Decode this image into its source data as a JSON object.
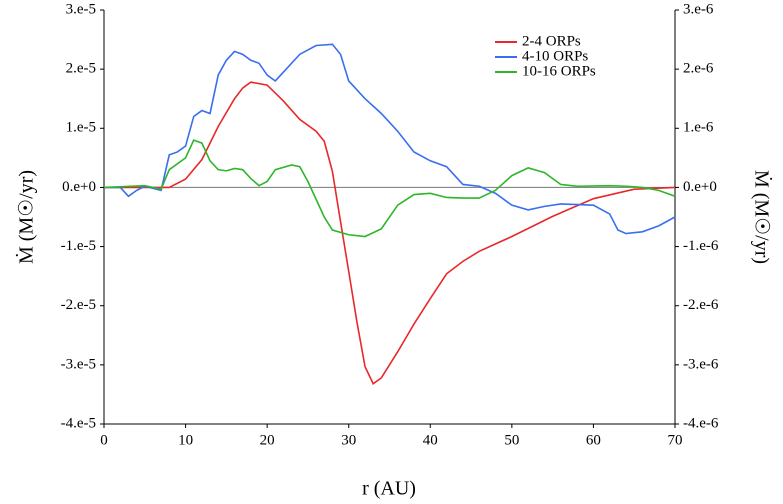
{
  "chart_data": {
    "type": "line",
    "xlabel": "r (AU)",
    "ylabel": "Ṁ (M☉/yr)",
    "y2label": "Ṁ (M☉/yr)",
    "xlim": [
      0,
      70
    ],
    "xticks": [
      0,
      10,
      20,
      30,
      40,
      50,
      60,
      70
    ],
    "ylim": [
      -4e-05,
      3e-05
    ],
    "yticks": [
      {
        "value": -4e-05,
        "label": "-4.e-5"
      },
      {
        "value": -3e-05,
        "label": "-3.e-5"
      },
      {
        "value": -2e-05,
        "label": "-2.e-5"
      },
      {
        "value": -1e-05,
        "label": "-1.e-5"
      },
      {
        "value": 0,
        "label": "0.e+0"
      },
      {
        "value": 1e-05,
        "label": "1.e-5"
      },
      {
        "value": 2e-05,
        "label": "2.e-5"
      },
      {
        "value": 3e-05,
        "label": "3.e-5"
      }
    ],
    "y2lim": [
      -4e-06,
      3e-06
    ],
    "y2ticks": [
      {
        "value": -4e-06,
        "label": "-4.e-6"
      },
      {
        "value": -3e-06,
        "label": "-3.e-6"
      },
      {
        "value": -2e-06,
        "label": "-2.e-6"
      },
      {
        "value": -1e-06,
        "label": "-1.e-6"
      },
      {
        "value": 0,
        "label": "0.e+0"
      },
      {
        "value": 1e-06,
        "label": "1.e-6"
      },
      {
        "value": 2e-06,
        "label": "2.e-6"
      },
      {
        "value": 3e-06,
        "label": "3.e-6"
      }
    ],
    "legend": "upper right",
    "series": [
      {
        "name": "2-4 ORPs",
        "color": "#e8282a",
        "x": [
          0,
          5,
          8,
          10,
          12,
          14,
          16,
          17,
          18,
          20,
          22,
          24,
          26,
          27,
          28,
          29,
          30,
          31,
          32,
          33,
          34,
          36,
          38,
          40,
          42,
          44,
          46,
          50,
          55,
          60,
          65,
          70
        ],
        "values": [
          0,
          0,
          0,
          1.4e-06,
          4.7e-06,
          1.03e-05,
          1.5e-05,
          1.68e-05,
          1.78e-05,
          1.73e-05,
          1.46e-05,
          1.15e-05,
          9.5e-06,
          7.8e-06,
          2.7e-06,
          -5.8e-06,
          -1.42e-05,
          -2.27e-05,
          -3.03e-05,
          -3.32e-05,
          -3.22e-05,
          -2.78e-05,
          -2.31e-05,
          -1.88e-05,
          -1.46e-05,
          -1.25e-05,
          -1.08e-05,
          -8.3e-06,
          -4.9e-06,
          -1.9e-06,
          -3e-07,
          0
        ]
      },
      {
        "name": "4-10 ORPs",
        "color": "#3a6ef0",
        "x": [
          0,
          2,
          3,
          4,
          5,
          7,
          8,
          9,
          10,
          11,
          12,
          13,
          14,
          15,
          16,
          17,
          18,
          19,
          20,
          21,
          22,
          24,
          26,
          28,
          29,
          30,
          32,
          34,
          36,
          38,
          40,
          42,
          44,
          46,
          48,
          50,
          52,
          54,
          56,
          60,
          62,
          63,
          64,
          66,
          68,
          70
        ],
        "values": [
          0,
          0,
          -1.5e-06,
          -5e-07,
          2e-07,
          -5e-07,
          5.5e-06,
          6e-06,
          7e-06,
          1.2e-05,
          1.3e-05,
          1.25e-05,
          1.9e-05,
          2.15e-05,
          2.3e-05,
          2.25e-05,
          2.15e-05,
          2.1e-05,
          1.9e-05,
          1.8e-05,
          1.95e-05,
          2.25e-05,
          2.4e-05,
          2.42e-05,
          2.25e-05,
          1.8e-05,
          1.5e-05,
          1.25e-05,
          9.5e-06,
          6e-06,
          4.5e-06,
          3.5e-06,
          5e-07,
          2e-07,
          -1e-06,
          -3e-06,
          -3.8e-06,
          -3.2e-06,
          -2.8e-06,
          -3e-06,
          -4.5e-06,
          -7.2e-06,
          -7.8e-06,
          -7.5e-06,
          -6.5e-06,
          -5e-06
        ]
      },
      {
        "name": "10-16 ORPs",
        "color": "#2fb52a",
        "x": [
          0,
          5,
          7,
          8,
          10,
          11,
          12,
          13,
          14,
          15,
          16,
          17,
          18,
          19,
          20,
          21,
          23,
          24,
          25,
          26,
          27,
          28,
          30,
          32,
          34,
          36,
          38,
          40,
          42,
          44,
          46,
          48,
          50,
          52,
          54,
          56,
          58,
          62,
          64,
          66,
          68,
          70
        ],
        "values": [
          0,
          3e-07,
          -3e-07,
          3e-06,
          5e-06,
          8e-06,
          7.5e-06,
          4.5e-06,
          3e-06,
          2.8e-06,
          3.2e-06,
          3e-06,
          1.5e-06,
          3e-07,
          1e-06,
          3e-06,
          3.8e-06,
          3.5e-06,
          1e-06,
          -2e-06,
          -5e-06,
          -7.2e-06,
          -8e-06,
          -8.3e-06,
          -7e-06,
          -3e-06,
          -1.2e-06,
          -1e-06,
          -1.7e-06,
          -1.8e-06,
          -1.8e-06,
          -5e-07,
          2e-06,
          3.3e-06,
          2.5e-06,
          5e-07,
          2e-07,
          3e-07,
          2e-07,
          0,
          -5e-07,
          -1.5e-06
        ]
      }
    ]
  }
}
